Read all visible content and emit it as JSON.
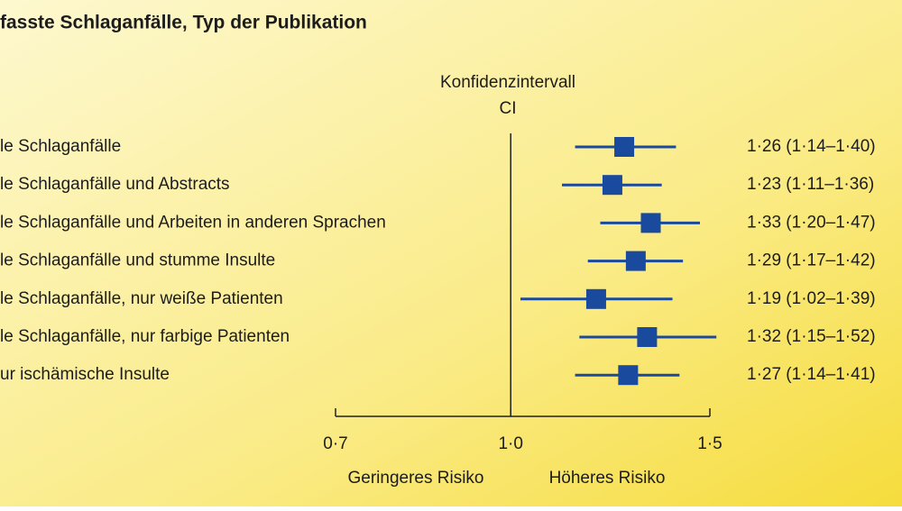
{
  "chart_data": {
    "type": "forest",
    "title": "fasste Schlaganfälle, Typ der Publikation",
    "ci_label": "Konfidenzintervall",
    "ci_short": "CI",
    "categories": [
      "le Schlaganfälle",
      "le Schlaganfälle und Abstracts",
      "le Schlaganfälle und Arbeiten in anderen Sprachen",
      "le Schlaganfälle und stumme Insulte",
      "le Schlaganfälle, nur weiße Patienten",
      "le Schlaganfälle, nur farbige Patienten",
      "ur ischämische Insulte"
    ],
    "values": [
      1.26,
      1.23,
      1.33,
      1.29,
      1.19,
      1.32,
      1.27
    ],
    "lower": [
      1.14,
      1.11,
      1.2,
      1.17,
      1.02,
      1.15,
      1.14
    ],
    "upper": [
      1.4,
      1.36,
      1.47,
      1.42,
      1.39,
      1.52,
      1.41
    ],
    "value_labels": [
      "1·26 (1·14–1·40)",
      "1·23 (1·11–1·36)",
      "1·33 (1·20–1·47)",
      "1·29 (1·17–1·42)",
      "1·19 (1·02–1·39)",
      "1·32 (1·15–1·52)",
      "1·27 (1·14–1·41)"
    ],
    "color": "#1a4a9e",
    "xlim": [
      0.7,
      1.5
    ],
    "xticks": [
      {
        "value": 0.7,
        "label": "0·7"
      },
      {
        "value": 1.0,
        "label": "1·0"
      },
      {
        "value": 1.5,
        "label": "1·5"
      }
    ],
    "log_x": true,
    "reference": 1.0,
    "left_note": "Geringeres Risiko",
    "right_note": "Höheres Risiko"
  }
}
